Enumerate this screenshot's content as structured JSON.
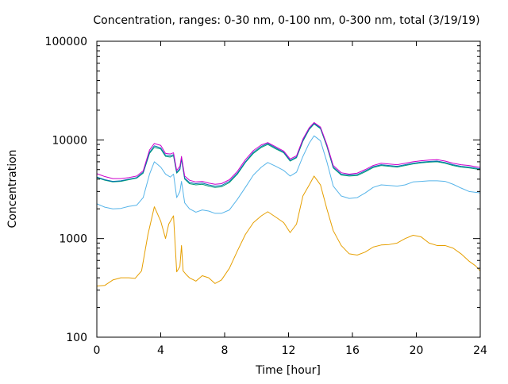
{
  "chart_data": {
    "type": "line",
    "title": "Concentration, ranges: 0-30 nm, 0-100 nm, 0-300 nm, total (3/19/19)",
    "xlabel": "Time [hour]",
    "ylabel": "Concentration",
    "xlim": [
      0,
      24
    ],
    "ylim": [
      100,
      100000
    ],
    "yscale": "log",
    "x_ticks": [
      0,
      4,
      8,
      12,
      16,
      20,
      24
    ],
    "x_tick_labels": [
      "0",
      "4",
      "8",
      "12",
      "16",
      "20",
      "24"
    ],
    "y_ticks": [
      100,
      1000,
      10000,
      100000
    ],
    "y_tick_labels": [
      "100",
      "1000",
      "10000",
      "100000"
    ],
    "grid": false,
    "legend": "none",
    "series": [
      {
        "color": "#e69f00",
        "points": [
          [
            0,
            330
          ],
          [
            0.5,
            335
          ],
          [
            1,
            380
          ],
          [
            1.5,
            400
          ],
          [
            2,
            400
          ],
          [
            2.4,
            395
          ],
          [
            2.8,
            470
          ],
          [
            3.2,
            1100
          ],
          [
            3.6,
            2100
          ],
          [
            4.0,
            1500
          ],
          [
            4.3,
            1000
          ],
          [
            4.5,
            1400
          ],
          [
            4.8,
            1700
          ],
          [
            5.0,
            460
          ],
          [
            5.2,
            520
          ],
          [
            5.3,
            850
          ],
          [
            5.4,
            470
          ],
          [
            5.6,
            430
          ],
          [
            5.8,
            400
          ],
          [
            6.2,
            370
          ],
          [
            6.6,
            420
          ],
          [
            7.0,
            400
          ],
          [
            7.4,
            350
          ],
          [
            7.8,
            380
          ],
          [
            8.3,
            500
          ],
          [
            8.8,
            750
          ],
          [
            9.3,
            1100
          ],
          [
            9.8,
            1450
          ],
          [
            10.3,
            1700
          ],
          [
            10.7,
            1870
          ],
          [
            11.2,
            1650
          ],
          [
            11.7,
            1450
          ],
          [
            12.1,
            1150
          ],
          [
            12.5,
            1400
          ],
          [
            12.9,
            2700
          ],
          [
            13.3,
            3500
          ],
          [
            13.6,
            4300
          ],
          [
            14.0,
            3500
          ],
          [
            14.4,
            2000
          ],
          [
            14.8,
            1200
          ],
          [
            15.3,
            850
          ],
          [
            15.8,
            700
          ],
          [
            16.3,
            680
          ],
          [
            16.8,
            730
          ],
          [
            17.3,
            820
          ],
          [
            17.8,
            860
          ],
          [
            18.3,
            870
          ],
          [
            18.8,
            900
          ],
          [
            19.3,
            1000
          ],
          [
            19.8,
            1080
          ],
          [
            20.3,
            1040
          ],
          [
            20.8,
            900
          ],
          [
            21.3,
            850
          ],
          [
            21.8,
            850
          ],
          [
            22.3,
            800
          ],
          [
            22.8,
            700
          ],
          [
            23.3,
            590
          ],
          [
            23.7,
            530
          ],
          [
            24,
            470
          ]
        ]
      },
      {
        "color": "#56b4e9",
        "points": [
          [
            0,
            2250
          ],
          [
            0.5,
            2080
          ],
          [
            1,
            2000
          ],
          [
            1.5,
            2020
          ],
          [
            2,
            2120
          ],
          [
            2.5,
            2180
          ],
          [
            2.9,
            2600
          ],
          [
            3.3,
            4500
          ],
          [
            3.6,
            6000
          ],
          [
            4.0,
            5300
          ],
          [
            4.3,
            4500
          ],
          [
            4.6,
            4200
          ],
          [
            4.8,
            4500
          ],
          [
            5.0,
            2600
          ],
          [
            5.2,
            3000
          ],
          [
            5.3,
            3800
          ],
          [
            5.5,
            2300
          ],
          [
            5.8,
            2000
          ],
          [
            6.2,
            1850
          ],
          [
            6.6,
            1950
          ],
          [
            7.0,
            1900
          ],
          [
            7.4,
            1800
          ],
          [
            7.8,
            1800
          ],
          [
            8.3,
            1950
          ],
          [
            8.8,
            2500
          ],
          [
            9.3,
            3300
          ],
          [
            9.8,
            4400
          ],
          [
            10.3,
            5300
          ],
          [
            10.7,
            5900
          ],
          [
            11.2,
            5400
          ],
          [
            11.7,
            4900
          ],
          [
            12.1,
            4300
          ],
          [
            12.5,
            4700
          ],
          [
            12.9,
            6800
          ],
          [
            13.3,
            9300
          ],
          [
            13.6,
            11000
          ],
          [
            14.0,
            9800
          ],
          [
            14.4,
            6000
          ],
          [
            14.8,
            3400
          ],
          [
            15.3,
            2700
          ],
          [
            15.8,
            2550
          ],
          [
            16.3,
            2600
          ],
          [
            16.8,
            2900
          ],
          [
            17.3,
            3300
          ],
          [
            17.8,
            3500
          ],
          [
            18.3,
            3450
          ],
          [
            18.8,
            3400
          ],
          [
            19.3,
            3500
          ],
          [
            19.8,
            3750
          ],
          [
            20.3,
            3800
          ],
          [
            20.8,
            3850
          ],
          [
            21.3,
            3850
          ],
          [
            21.8,
            3800
          ],
          [
            22.3,
            3550
          ],
          [
            22.8,
            3250
          ],
          [
            23.3,
            3000
          ],
          [
            24,
            2900
          ]
        ]
      },
      {
        "color": "#009e73",
        "points": [
          [
            0,
            4150
          ],
          [
            0.5,
            3900
          ],
          [
            1,
            3750
          ],
          [
            1.5,
            3800
          ],
          [
            2,
            3950
          ],
          [
            2.5,
            4100
          ],
          [
            2.9,
            4600
          ],
          [
            3.3,
            7300
          ],
          [
            3.6,
            8400
          ],
          [
            4.0,
            8100
          ],
          [
            4.3,
            6800
          ],
          [
            4.6,
            6700
          ],
          [
            4.8,
            6900
          ],
          [
            5.0,
            4600
          ],
          [
            5.2,
            5000
          ],
          [
            5.3,
            6400
          ],
          [
            5.5,
            4000
          ],
          [
            5.8,
            3600
          ],
          [
            6.2,
            3500
          ],
          [
            6.6,
            3550
          ],
          [
            7.0,
            3400
          ],
          [
            7.4,
            3300
          ],
          [
            7.8,
            3350
          ],
          [
            8.3,
            3700
          ],
          [
            8.8,
            4500
          ],
          [
            9.3,
            5900
          ],
          [
            9.8,
            7300
          ],
          [
            10.3,
            8400
          ],
          [
            10.7,
            9000
          ],
          [
            11.2,
            8100
          ],
          [
            11.7,
            7400
          ],
          [
            12.1,
            6100
          ],
          [
            12.5,
            6600
          ],
          [
            12.9,
            9700
          ],
          [
            13.3,
            12800
          ],
          [
            13.6,
            14500
          ],
          [
            14.0,
            13000
          ],
          [
            14.4,
            8600
          ],
          [
            14.8,
            5200
          ],
          [
            15.3,
            4400
          ],
          [
            15.8,
            4300
          ],
          [
            16.3,
            4350
          ],
          [
            16.8,
            4750
          ],
          [
            17.3,
            5250
          ],
          [
            17.8,
            5500
          ],
          [
            18.3,
            5400
          ],
          [
            18.8,
            5300
          ],
          [
            19.3,
            5500
          ],
          [
            19.8,
            5700
          ],
          [
            20.3,
            5850
          ],
          [
            20.8,
            5950
          ],
          [
            21.3,
            6000
          ],
          [
            21.8,
            5800
          ],
          [
            22.3,
            5500
          ],
          [
            22.8,
            5300
          ],
          [
            23.3,
            5200
          ],
          [
            24,
            5000
          ]
        ]
      },
      {
        "color": "#0072b2",
        "points": [
          [
            0,
            4200
          ],
          [
            0.5,
            3950
          ],
          [
            1,
            3800
          ],
          [
            1.5,
            3850
          ],
          [
            2,
            4000
          ],
          [
            2.5,
            4150
          ],
          [
            2.9,
            4700
          ],
          [
            3.3,
            7500
          ],
          [
            3.6,
            8700
          ],
          [
            4.0,
            8300
          ],
          [
            4.3,
            7000
          ],
          [
            4.6,
            6900
          ],
          [
            4.8,
            7100
          ],
          [
            5.0,
            4700
          ],
          [
            5.2,
            5100
          ],
          [
            5.3,
            6500
          ],
          [
            5.5,
            4100
          ],
          [
            5.8,
            3700
          ],
          [
            6.2,
            3600
          ],
          [
            6.6,
            3650
          ],
          [
            7.0,
            3500
          ],
          [
            7.4,
            3400
          ],
          [
            7.8,
            3450
          ],
          [
            8.3,
            3800
          ],
          [
            8.8,
            4600
          ],
          [
            9.3,
            6000
          ],
          [
            9.8,
            7500
          ],
          [
            10.3,
            8600
          ],
          [
            10.7,
            9200
          ],
          [
            11.2,
            8300
          ],
          [
            11.7,
            7500
          ],
          [
            12.1,
            6200
          ],
          [
            12.5,
            6700
          ],
          [
            12.9,
            9900
          ],
          [
            13.3,
            13000
          ],
          [
            13.6,
            14700
          ],
          [
            14.0,
            13200
          ],
          [
            14.4,
            8800
          ],
          [
            14.8,
            5300
          ],
          [
            15.3,
            4500
          ],
          [
            15.8,
            4400
          ],
          [
            16.3,
            4450
          ],
          [
            16.8,
            4850
          ],
          [
            17.3,
            5350
          ],
          [
            17.8,
            5600
          ],
          [
            18.3,
            5500
          ],
          [
            18.8,
            5400
          ],
          [
            19.3,
            5600
          ],
          [
            19.8,
            5800
          ],
          [
            20.3,
            5950
          ],
          [
            20.8,
            6050
          ],
          [
            21.3,
            6100
          ],
          [
            21.8,
            5900
          ],
          [
            22.3,
            5600
          ],
          [
            22.8,
            5400
          ],
          [
            23.3,
            5300
          ],
          [
            24,
            5100
          ]
        ]
      },
      {
        "color": "#cc00cc",
        "points": [
          [
            0,
            4550
          ],
          [
            0.5,
            4250
          ],
          [
            1,
            4050
          ],
          [
            1.5,
            4050
          ],
          [
            2,
            4150
          ],
          [
            2.5,
            4300
          ],
          [
            2.9,
            4850
          ],
          [
            3.3,
            7900
          ],
          [
            3.6,
            9200
          ],
          [
            4.0,
            8800
          ],
          [
            4.3,
            7300
          ],
          [
            4.6,
            7200
          ],
          [
            4.8,
            7400
          ],
          [
            5.0,
            4900
          ],
          [
            5.2,
            5400
          ],
          [
            5.3,
            6800
          ],
          [
            5.5,
            4300
          ],
          [
            5.8,
            3900
          ],
          [
            6.2,
            3750
          ],
          [
            6.6,
            3800
          ],
          [
            7.0,
            3650
          ],
          [
            7.4,
            3550
          ],
          [
            7.8,
            3600
          ],
          [
            8.3,
            3950
          ],
          [
            8.8,
            4800
          ],
          [
            9.3,
            6300
          ],
          [
            9.8,
            7800
          ],
          [
            10.3,
            8900
          ],
          [
            10.7,
            9400
          ],
          [
            11.2,
            8500
          ],
          [
            11.7,
            7700
          ],
          [
            12.1,
            6400
          ],
          [
            12.5,
            6900
          ],
          [
            12.9,
            10200
          ],
          [
            13.3,
            13300
          ],
          [
            13.6,
            15000
          ],
          [
            14.0,
            13500
          ],
          [
            14.4,
            9000
          ],
          [
            14.8,
            5500
          ],
          [
            15.3,
            4650
          ],
          [
            15.8,
            4500
          ],
          [
            16.3,
            4600
          ],
          [
            16.8,
            5000
          ],
          [
            17.3,
            5500
          ],
          [
            17.8,
            5800
          ],
          [
            18.3,
            5700
          ],
          [
            18.8,
            5600
          ],
          [
            19.3,
            5800
          ],
          [
            19.8,
            6000
          ],
          [
            20.3,
            6150
          ],
          [
            20.8,
            6250
          ],
          [
            21.3,
            6300
          ],
          [
            21.8,
            6100
          ],
          [
            22.3,
            5800
          ],
          [
            22.8,
            5600
          ],
          [
            23.3,
            5500
          ],
          [
            24,
            5250
          ]
        ]
      }
    ]
  }
}
